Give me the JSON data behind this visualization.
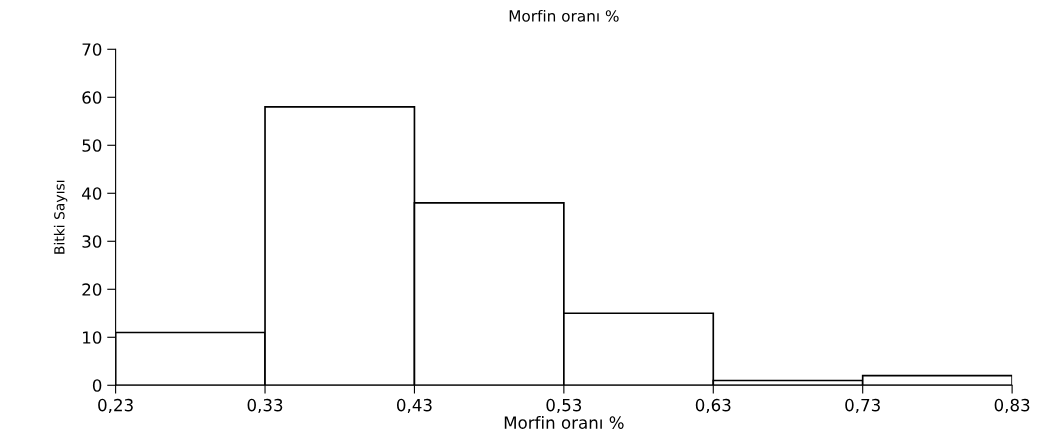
{
  "chart_data": {
    "type": "histogram",
    "title": "Morfin oranı %",
    "xlabel": "Morfin oranı %",
    "ylabel": "Bitki Sayısı",
    "bins": [
      0.23,
      0.33,
      0.43,
      0.53,
      0.63,
      0.73,
      0.83
    ],
    "values": [
      11,
      58,
      38,
      15,
      1,
      2
    ],
    "color": "#ffffff",
    "xlim": [
      0.23,
      0.83
    ],
    "xticks": [
      {
        "value": 0.23,
        "label": "0,23"
      },
      {
        "value": 0.33,
        "label": "0,33"
      },
      {
        "value": 0.43,
        "label": "0,43"
      },
      {
        "value": 0.53,
        "label": "0,53"
      },
      {
        "value": 0.63,
        "label": "0,63"
      },
      {
        "value": 0.73,
        "label": "0,73"
      },
      {
        "value": 0.83,
        "label": "0,83"
      }
    ],
    "ylim": [
      0,
      70
    ],
    "yticks": [
      0,
      10,
      20,
      30,
      40,
      50,
      60,
      70
    ],
    "grid": false
  }
}
